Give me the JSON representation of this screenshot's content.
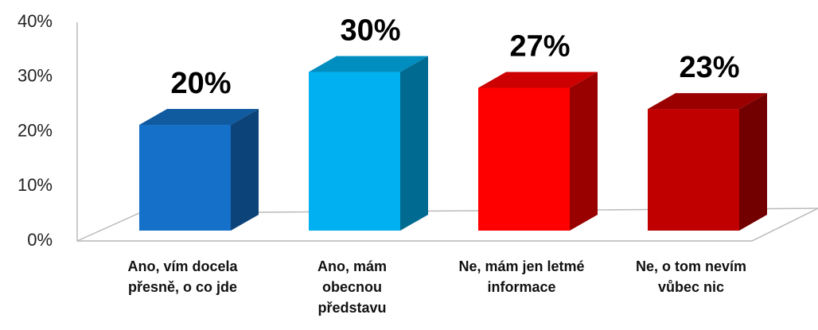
{
  "chart_data": {
    "type": "bar3d",
    "categories": [
      "Ano, vím docela přesně, o co jde",
      "Ano, mám obecnou představu",
      "Ne, mám jen letmé informace",
      "Ne, o tom nevím vůbec nic"
    ],
    "values": [
      20,
      30,
      27,
      23
    ],
    "value_labels": [
      "20%",
      "30%",
      "27%",
      "23%"
    ],
    "colors": [
      "#1470c8",
      "#00b0f0",
      "#ff0000",
      "#c00000"
    ],
    "ylim": [
      0,
      40
    ],
    "yticks": [
      {
        "value": 0,
        "label": "0%"
      },
      {
        "value": 10,
        "label": "10%"
      },
      {
        "value": 20,
        "label": "20%"
      },
      {
        "value": 30,
        "label": "30%"
      },
      {
        "value": 40,
        "label": "40%"
      }
    ]
  }
}
